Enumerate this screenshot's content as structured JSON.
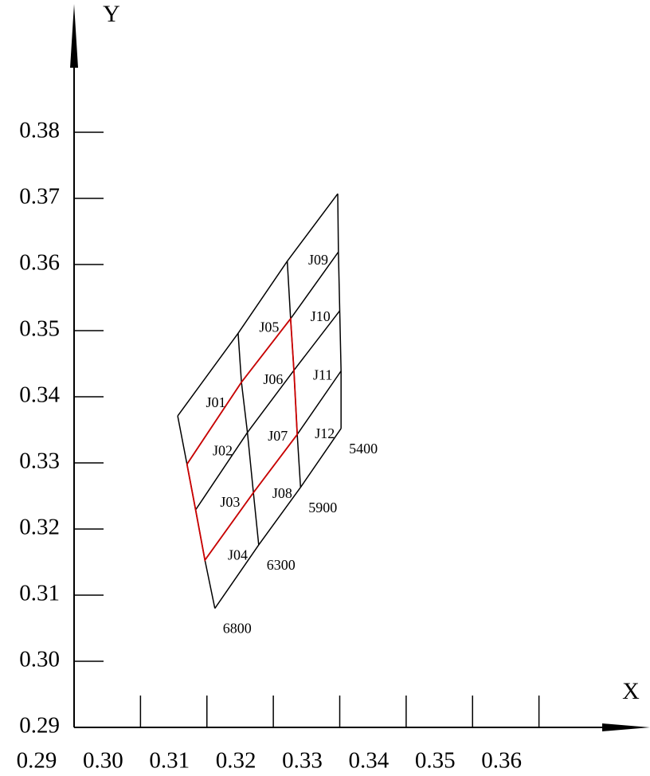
{
  "chart_data": {
    "type": "bin-grid",
    "xlabel": "X",
    "ylabel": "Y",
    "xlim": [
      0.29,
      0.37
    ],
    "ylim": [
      0.29,
      0.39
    ],
    "xticks": [
      {
        "value": 0.29,
        "label": "0.29"
      },
      {
        "value": 0.3,
        "label": "0.30"
      },
      {
        "value": 0.31,
        "label": "0.31"
      },
      {
        "value": 0.32,
        "label": "0.32"
      },
      {
        "value": 0.33,
        "label": "0.33"
      },
      {
        "value": 0.34,
        "label": "0.34"
      },
      {
        "value": 0.35,
        "label": "0.35"
      },
      {
        "value": 0.36,
        "label": "0.36"
      }
    ],
    "yticks": [
      {
        "value": 0.29,
        "label": "0.29"
      },
      {
        "value": 0.3,
        "label": "0.30"
      },
      {
        "value": 0.31,
        "label": "0.31"
      },
      {
        "value": 0.32,
        "label": "0.32"
      },
      {
        "value": 0.33,
        "label": "0.33"
      },
      {
        "value": 0.34,
        "label": "0.34"
      },
      {
        "value": 0.35,
        "label": "0.35"
      },
      {
        "value": 0.36,
        "label": "0.36"
      },
      {
        "value": 0.37,
        "label": "0.37"
      },
      {
        "value": 0.38,
        "label": "0.38"
      }
    ],
    "grid_points": [
      [
        [
          0.3056,
          0.3371
        ],
        [
          0.3147,
          0.3496
        ],
        [
          0.3221,
          0.3605
        ],
        [
          0.3297,
          0.3707
        ]
      ],
      [
        [
          0.307,
          0.3298
        ],
        [
          0.3152,
          0.3422
        ],
        [
          0.3226,
          0.3518
        ],
        [
          0.3298,
          0.3619
        ]
      ],
      [
        [
          0.3083,
          0.3229
        ],
        [
          0.3161,
          0.3346
        ],
        [
          0.3231,
          0.344
        ],
        [
          0.33,
          0.353
        ]
      ],
      [
        [
          0.3097,
          0.3153
        ],
        [
          0.317,
          0.3255
        ],
        [
          0.3236,
          0.3343
        ],
        [
          0.3302,
          0.3439
        ]
      ],
      [
        [
          0.3112,
          0.308
        ],
        [
          0.3178,
          0.3176
        ],
        [
          0.3241,
          0.3263
        ],
        [
          0.3302,
          0.3352
        ]
      ]
    ],
    "bins": [
      "J01",
      "J02",
      "J03",
      "J04",
      "J05",
      "J06",
      "J07",
      "J08",
      "J09",
      "J10",
      "J11",
      "J12"
    ],
    "cct_labels": [
      6800,
      6300,
      5900,
      5400
    ],
    "line_color": "#000000",
    "highlight": {
      "rows": [
        1,
        3
      ],
      "cols": [
        0,
        2
      ],
      "color": "#cc0000"
    }
  }
}
